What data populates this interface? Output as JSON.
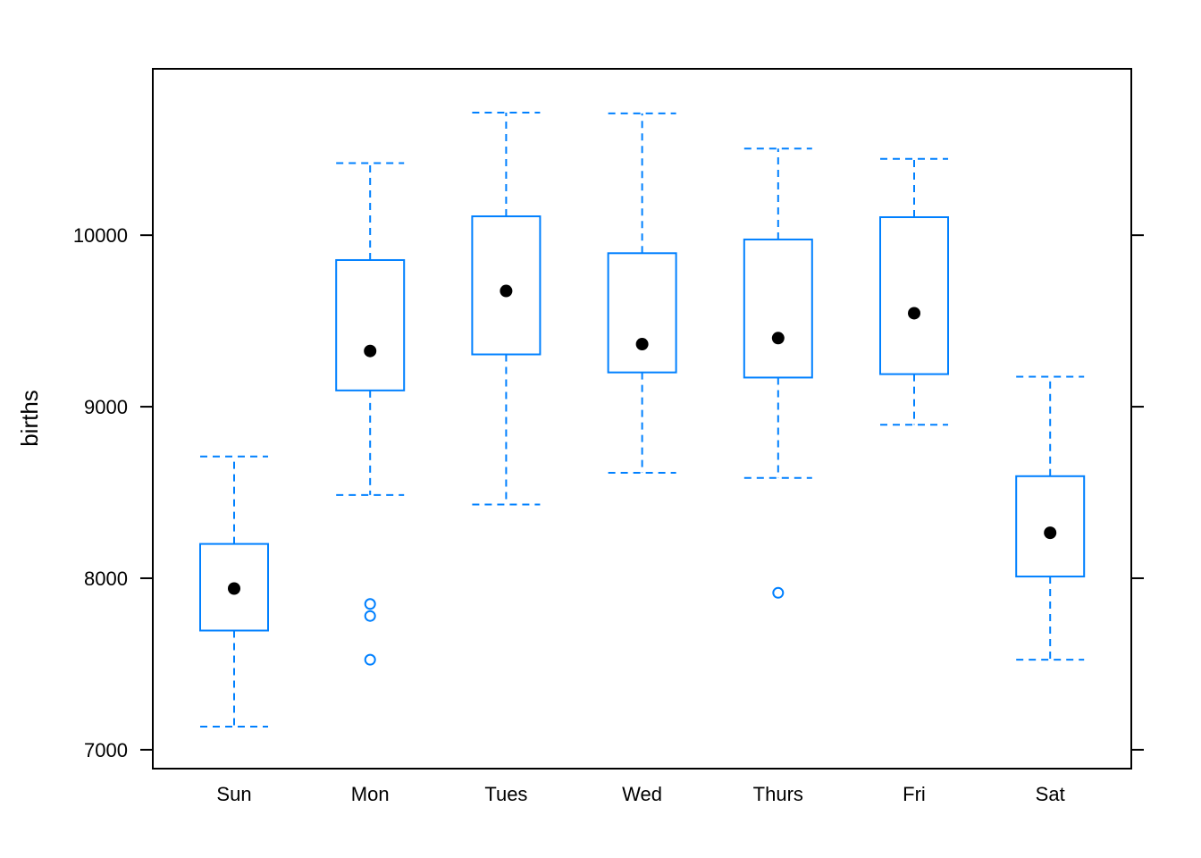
{
  "chart_data": {
    "type": "box",
    "title": "",
    "xlabel": "",
    "ylabel": "births",
    "ylim": [
      6890,
      10970
    ],
    "yticks": [
      7000,
      8000,
      9000,
      10000
    ],
    "ytick_labels": [
      "7000",
      "8000",
      "9000",
      "10000"
    ],
    "categories": [
      "Sun",
      "Mon",
      "Tues",
      "Wed",
      "Thurs",
      "Fri",
      "Sat"
    ],
    "boxes": [
      {
        "category": "Sun",
        "whisker_low": 7135,
        "q1": 7695,
        "median": 7940,
        "q3": 8200,
        "whisker_high": 8710,
        "outliers": []
      },
      {
        "category": "Mon",
        "whisker_low": 8485,
        "q1": 9095,
        "median": 9325,
        "q3": 9855,
        "whisker_high": 10420,
        "outliers": [
          7850,
          7780,
          7525
        ]
      },
      {
        "category": "Tues",
        "whisker_low": 8430,
        "q1": 9305,
        "median": 9675,
        "q3": 10110,
        "whisker_high": 10715,
        "outliers": []
      },
      {
        "category": "Wed",
        "whisker_low": 8615,
        "q1": 9200,
        "median": 9365,
        "q3": 9895,
        "whisker_high": 10710,
        "outliers": []
      },
      {
        "category": "Thurs",
        "whisker_low": 8585,
        "q1": 9170,
        "median": 9400,
        "q3": 9975,
        "whisker_high": 10505,
        "outliers": [
          7915
        ]
      },
      {
        "category": "Fri",
        "whisker_low": 8895,
        "q1": 9190,
        "median": 9545,
        "q3": 10105,
        "whisker_high": 10445,
        "outliers": []
      },
      {
        "category": "Sat",
        "whisker_low": 7525,
        "q1": 8010,
        "median": 8265,
        "q3": 8595,
        "whisker_high": 9175,
        "outliers": []
      }
    ],
    "grid": false,
    "box_color": "#0080ff",
    "median_marker_color": "#000000"
  }
}
